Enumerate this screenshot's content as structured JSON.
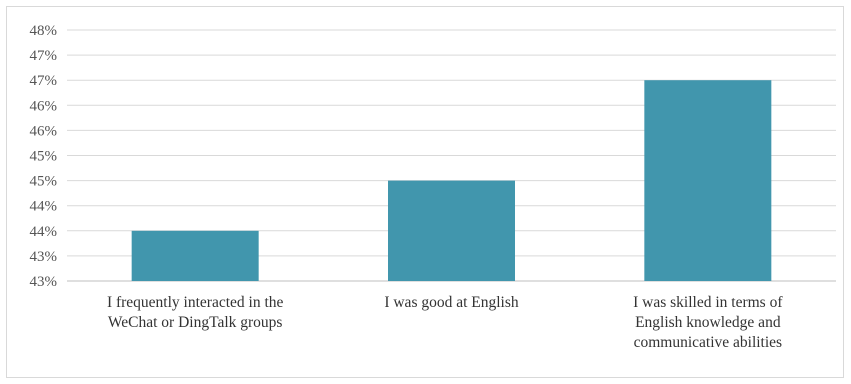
{
  "chart_data": {
    "type": "bar",
    "categories": [
      [
        "I frequently interacted in the",
        "WeChat or DingTalk groups"
      ],
      [
        "I was good at English"
      ],
      [
        "I was skilled in terms of",
        "English knowledge and",
        "communicative abilities"
      ]
    ],
    "values": [
      44.0,
      45.0,
      47.0
    ],
    "y_ticks": [
      "43%",
      "43%",
      "44%",
      "44%",
      "45%",
      "45%",
      "46%",
      "46%",
      "47%",
      "47%",
      "48%"
    ],
    "ylim": [
      43,
      48
    ],
    "grid": true,
    "bar_color": "#4196ad",
    "title": "",
    "xlabel": "",
    "ylabel": ""
  }
}
